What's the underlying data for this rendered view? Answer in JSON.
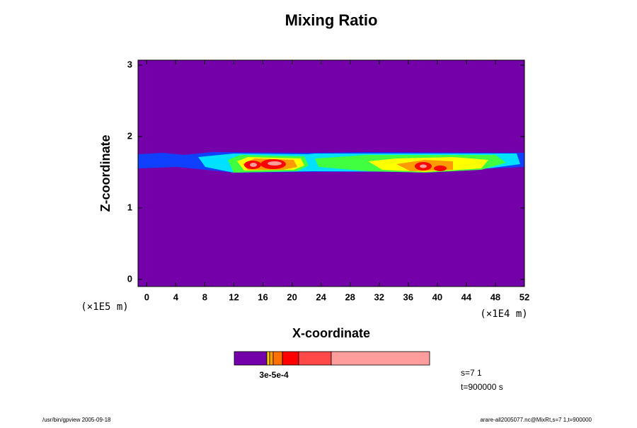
{
  "chart_data": {
    "type": "contour",
    "title": "Mixing Ratio",
    "x_label": "X-coordinate",
    "y_label": "Z-coordinate",
    "x_unit": "(×1E4 m)",
    "y_unit": "(×1E5 m)",
    "xlim": [
      -1.2,
      52
    ],
    "xticks": [
      0,
      4,
      8,
      12,
      16,
      20,
      24,
      28,
      32,
      36,
      40,
      44,
      48,
      52
    ],
    "ylim": [
      -0.1,
      3.07
    ],
    "yticks": [
      0,
      1,
      2,
      3
    ],
    "background_color": "#7300a8",
    "colorbar": {
      "colors": [
        "#7300a8",
        "#ffd000",
        "#ff9a00",
        "#ff7000",
        "#ff0000",
        "#ff4848",
        "#ff9c9c"
      ],
      "label": "3e-5e-4"
    },
    "annotations": [
      "s=7 1",
      "t=900000 s"
    ],
    "footer_left": "/usr/bin/gpview 2005-09-18",
    "footer_right": "arare-all2005077.nc@MixRt,s=7 1,t=900000"
  }
}
